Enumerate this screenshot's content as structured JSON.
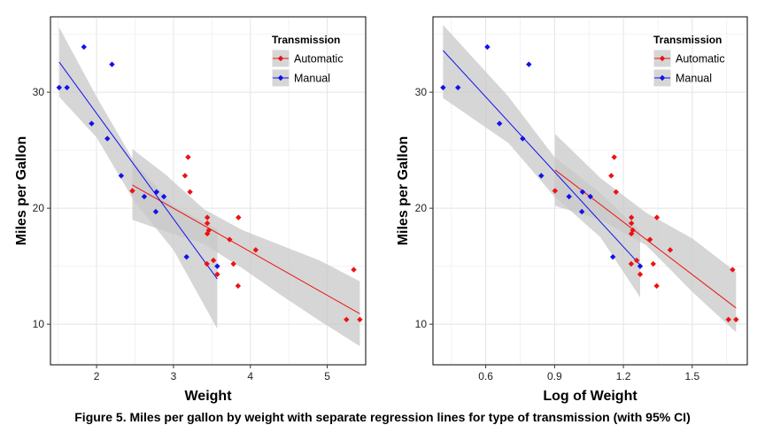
{
  "caption": "Figure 5. Miles per gallon by weight with separate regression lines for type of transmission (with 95% CI)",
  "colors": {
    "Automatic": "#ee1111",
    "Manual": "#1111ee",
    "band": "#c8c8c8"
  },
  "chart_data": [
    {
      "type": "scatter",
      "xlabel": "Weight",
      "ylabel": "Miles per Gallon",
      "xlim": [
        1.4,
        5.5
      ],
      "ylim": [
        6.5,
        36.5
      ],
      "xticks": [
        2,
        3,
        4,
        5
      ],
      "xtick_labels": [
        "2",
        "3",
        "4",
        "5"
      ],
      "yticks": [
        10,
        20,
        30
      ],
      "ytick_labels": [
        "10",
        "20",
        "30"
      ],
      "grid": true,
      "legend": {
        "title": "Transmission",
        "position": "top-right"
      },
      "series": [
        {
          "name": "Automatic",
          "x": [
            2.465,
            3.215,
            3.44,
            3.46,
            3.57,
            3.19,
            3.15,
            3.44,
            3.44,
            4.07,
            3.73,
            3.78,
            5.25,
            5.424,
            5.345,
            3.52,
            3.435,
            3.84,
            3.845
          ],
          "y": [
            21.5,
            21.4,
            18.7,
            18.1,
            14.3,
            24.4,
            22.8,
            19.2,
            17.8,
            16.4,
            17.3,
            15.2,
            10.4,
            10.4,
            14.7,
            15.5,
            15.2,
            13.3,
            19.2
          ],
          "fit": {
            "x": [
              2.465,
              5.424
            ],
            "y": [
              22.0,
              10.9
            ]
          },
          "ci": {
            "x": [
              2.465,
              2.9,
              3.4,
              3.9,
              4.4,
              4.9,
              5.424
            ],
            "lower": [
              19.0,
              18.0,
              16.9,
              14.8,
              12.5,
              10.3,
              8.1
            ],
            "upper": [
              25.1,
              22.9,
              19.9,
              18.1,
              16.8,
              15.5,
              13.7
            ]
          }
        },
        {
          "name": "Manual",
          "x": [
            2.62,
            2.875,
            2.32,
            2.2,
            1.615,
            1.835,
            1.935,
            2.14,
            1.513,
            3.17,
            2.77,
            3.57,
            2.78
          ],
          "y": [
            21.0,
            21.0,
            22.8,
            32.4,
            30.4,
            33.9,
            27.3,
            26.0,
            30.4,
            15.8,
            19.7,
            15.0,
            21.4
          ],
          "fit": {
            "x": [
              1.513,
              3.57
            ],
            "y": [
              32.6,
              13.9
            ]
          },
          "ci": {
            "x": [
              1.513,
              2.0,
              2.5,
              3.0,
              3.57
            ],
            "lower": [
              29.6,
              26.1,
              20.5,
              16.4,
              9.6
            ],
            "upper": [
              35.6,
              29.6,
              23.9,
              20.2,
              18.2
            ]
          }
        }
      ]
    },
    {
      "type": "scatter",
      "xlabel": "Log of Weight",
      "ylabel": "Miles per Gallon",
      "xlim": [
        0.37,
        1.74
      ],
      "ylim": [
        6.5,
        36.5
      ],
      "xticks": [
        0.6,
        0.9,
        1.2,
        1.5
      ],
      "xtick_labels": [
        "0.6",
        "0.9",
        "1.2",
        "1.5"
      ],
      "yticks": [
        10,
        20,
        30
      ],
      "ytick_labels": [
        "10",
        "20",
        "30"
      ],
      "grid": true,
      "legend": {
        "title": "Transmission",
        "position": "top-right"
      },
      "series": [
        {
          "name": "Automatic",
          "x": [
            0.902,
            1.168,
            1.235,
            1.241,
            1.273,
            1.16,
            1.147,
            1.235,
            1.235,
            1.404,
            1.316,
            1.33,
            1.658,
            1.691,
            1.676,
            1.258,
            1.234,
            1.345,
            1.346
          ],
          "y": [
            21.5,
            21.4,
            18.7,
            18.1,
            14.3,
            24.4,
            22.8,
            19.2,
            17.8,
            16.4,
            17.3,
            15.2,
            10.4,
            10.4,
            14.7,
            15.5,
            15.2,
            13.3,
            19.2
          ],
          "fit": {
            "x": [
              0.902,
              1.691
            ],
            "y": [
              23.3,
              11.4
            ]
          },
          "ci": {
            "x": [
              0.902,
              1.1,
              1.3,
              1.5,
              1.691
            ],
            "lower": [
              20.2,
              19.0,
              16.8,
              12.8,
              9.3
            ],
            "upper": [
              26.4,
              22.6,
              19.6,
              17.4,
              14.5
            ]
          }
        },
        {
          "name": "Manual",
          "x": [
            0.963,
            1.056,
            0.842,
            0.788,
            0.479,
            0.607,
            0.66,
            0.761,
            0.414,
            1.154,
            1.019,
            1.273,
            1.022
          ],
          "y": [
            21.0,
            21.0,
            22.8,
            32.4,
            30.4,
            33.9,
            27.3,
            26.0,
            30.4,
            15.8,
            19.7,
            15.0,
            21.4
          ],
          "fit": {
            "x": [
              0.414,
              1.273
            ],
            "y": [
              33.6,
              15.1
            ]
          },
          "ci": {
            "x": [
              0.414,
              0.7,
              0.9,
              1.1,
              1.273
            ],
            "lower": [
              29.5,
              25.6,
              21.0,
              17.5,
              12.3
            ],
            "upper": [
              35.8,
              29.6,
              24.4,
              21.3,
              18.0
            ]
          }
        }
      ]
    }
  ]
}
